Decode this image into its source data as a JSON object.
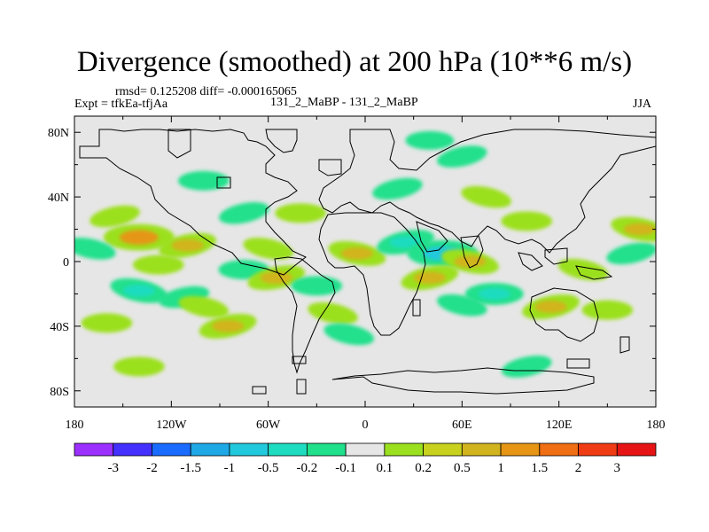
{
  "title": "Divergence (smoothed) at 200 hPa (10**6 m/s)",
  "stats_text": "rmsd= 0.125208 diff= -0.000165065",
  "expt_text": "Expt = tfkEa-tfjAa",
  "case_text": "131_2_MaBP - 131_2_MaBP",
  "season_text": "JJA",
  "lat_labels": [
    "80N",
    "40N",
    "0",
    "40S",
    "80S"
  ],
  "lon_labels": [
    "180",
    "120W",
    "60W",
    "0",
    "60E",
    "120E",
    "180"
  ],
  "colorbar": {
    "colors": [
      "#9b30ff",
      "#4430ff",
      "#1a6bff",
      "#1ea8e6",
      "#22c8dc",
      "#1edcc0",
      "#20e08c",
      "#e6e6e6",
      "#9be01e",
      "#c8d21e",
      "#d2b41e",
      "#e69614",
      "#f06e14",
      "#f03c14",
      "#e61414"
    ],
    "labels": [
      "-3",
      "-2",
      "-1.5",
      "-1",
      "-0.5",
      "-0.2",
      "-0.1",
      "0.1",
      "0.2",
      "0.5",
      "1",
      "1.5",
      "2",
      "3"
    ]
  },
  "chart_data": {
    "type": "heatmap",
    "title": "Divergence (smoothed) at 200 hPa (10**6 m/s)",
    "x_range": [
      -180,
      180
    ],
    "y_range": [
      -90,
      90
    ],
    "levels": [
      -3,
      -2,
      -1.5,
      -1,
      -0.5,
      -0.2,
      -0.1,
      0.1,
      0.2,
      0.5,
      1,
      1.5,
      2,
      3
    ],
    "blobs": [
      {
        "lon": -155,
        "lat": 28,
        "value": 0.2
      },
      {
        "lon": -140,
        "lat": 15,
        "value": 1
      },
      {
        "lon": -170,
        "lat": 8,
        "value": -0.2
      },
      {
        "lon": -110,
        "lat": 10,
        "value": 0.5
      },
      {
        "lon": -128,
        "lat": -2,
        "value": 0.2
      },
      {
        "lon": -140,
        "lat": -18,
        "value": -0.5
      },
      {
        "lon": -112,
        "lat": -22,
        "value": -0.2
      },
      {
        "lon": -160,
        "lat": -38,
        "value": 0.2
      },
      {
        "lon": -100,
        "lat": -28,
        "value": 0.2
      },
      {
        "lon": -85,
        "lat": -40,
        "value": 0.5
      },
      {
        "lon": -75,
        "lat": -5,
        "value": -0.2
      },
      {
        "lon": -60,
        "lat": 8,
        "value": 0.2
      },
      {
        "lon": -55,
        "lat": -10,
        "value": 0.5
      },
      {
        "lon": -30,
        "lat": -15,
        "value": -0.2
      },
      {
        "lon": -20,
        "lat": -32,
        "value": 0.2
      },
      {
        "lon": -75,
        "lat": 30,
        "value": -0.2
      },
      {
        "lon": -40,
        "lat": 30,
        "value": 0.2
      },
      {
        "lon": -5,
        "lat": 5,
        "value": 0.5
      },
      {
        "lon": 25,
        "lat": 12,
        "value": -0.5
      },
      {
        "lon": 48,
        "lat": 5,
        "value": -1
      },
      {
        "lon": 65,
        "lat": 0,
        "value": 0.5
      },
      {
        "lon": 40,
        "lat": -10,
        "value": 0.5
      },
      {
        "lon": 80,
        "lat": -20,
        "value": -0.5
      },
      {
        "lon": 60,
        "lat": -27,
        "value": -0.2
      },
      {
        "lon": 115,
        "lat": -28,
        "value": 0.5
      },
      {
        "lon": 150,
        "lat": -30,
        "value": 0.2
      },
      {
        "lon": 135,
        "lat": -5,
        "value": 0.2
      },
      {
        "lon": 165,
        "lat": 5,
        "value": -0.2
      },
      {
        "lon": 100,
        "lat": 25,
        "value": 0.2
      },
      {
        "lon": 170,
        "lat": 20,
        "value": 0.5
      },
      {
        "lon": 60,
        "lat": 65,
        "value": -0.2
      },
      {
        "lon": 40,
        "lat": 75,
        "value": -0.1
      },
      {
        "lon": 75,
        "lat": 40,
        "value": 0.2
      },
      {
        "lon": 20,
        "lat": 45,
        "value": -0.2
      },
      {
        "lon": -100,
        "lat": 50,
        "value": -0.2
      },
      {
        "lon": -10,
        "lat": -45,
        "value": -0.2
      },
      {
        "lon": 100,
        "lat": -65,
        "value": -0.2
      },
      {
        "lon": -140,
        "lat": -65,
        "value": 0.2
      }
    ]
  }
}
